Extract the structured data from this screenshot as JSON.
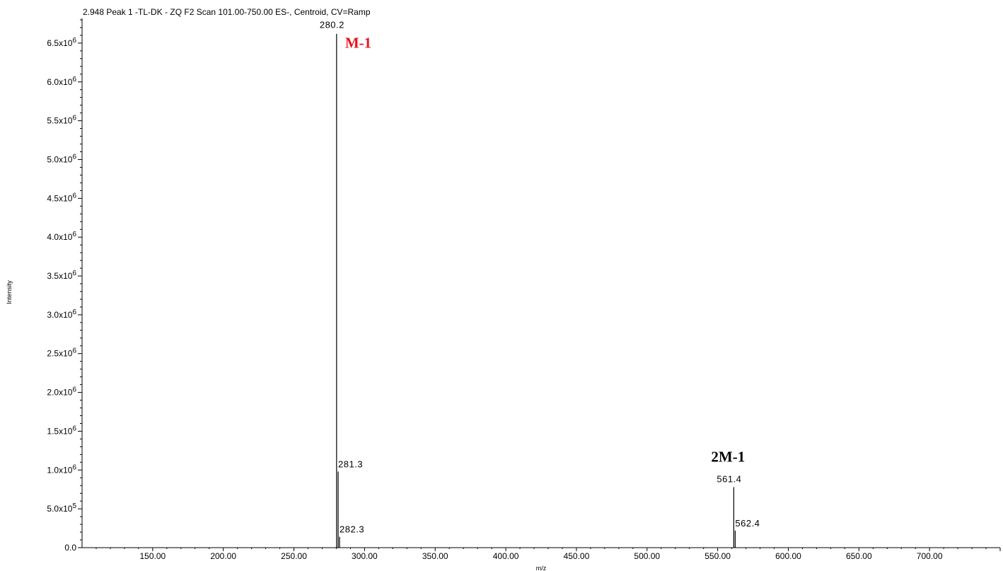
{
  "chart_data": {
    "type": "bar",
    "title": "2.948 Peak 1 -TL-DK - ZQ F2 Scan 101.00-750.00 ES-, Centroid, CV=Ramp",
    "xlabel": "m/z",
    "ylabel": "Intensity",
    "xlim": [
      100.0,
      750.0
    ],
    "ylim": [
      0,
      6800000
    ],
    "x_ticks": [
      150,
      200,
      250,
      300,
      350,
      400,
      450,
      500,
      550,
      600,
      650,
      700
    ],
    "x_tick_labels": [
      "150.00",
      "200.00",
      "250.00",
      "300.00",
      "350.00",
      "400.00",
      "450.00",
      "500.00",
      "550.00",
      "600.00",
      "650.00",
      "700.00"
    ],
    "y_ticks": [
      {
        "value": 0,
        "mantissa": "0.0",
        "exponent": ""
      },
      {
        "value": 500000,
        "mantissa": "5.0x10",
        "exponent": "5"
      },
      {
        "value": 1000000,
        "mantissa": "1.0x10",
        "exponent": "6"
      },
      {
        "value": 1500000,
        "mantissa": "1.5x10",
        "exponent": "6"
      },
      {
        "value": 2000000,
        "mantissa": "2.0x10",
        "exponent": "6"
      },
      {
        "value": 2500000,
        "mantissa": "2.5x10",
        "exponent": "6"
      },
      {
        "value": 3000000,
        "mantissa": "3.0x10",
        "exponent": "6"
      },
      {
        "value": 3500000,
        "mantissa": "3.5x10",
        "exponent": "6"
      },
      {
        "value": 4000000,
        "mantissa": "4.0x10",
        "exponent": "6"
      },
      {
        "value": 4500000,
        "mantissa": "4.5x10",
        "exponent": "6"
      },
      {
        "value": 5000000,
        "mantissa": "5.0x10",
        "exponent": "6"
      },
      {
        "value": 5500000,
        "mantissa": "5.5x10",
        "exponent": "6"
      },
      {
        "value": 6000000,
        "mantissa": "6.0x10",
        "exponent": "6"
      },
      {
        "value": 6500000,
        "mantissa": "6.5x10",
        "exponent": "6"
      }
    ],
    "peaks": [
      {
        "mz": 280.2,
        "intensity": 6620000,
        "label": "280.2"
      },
      {
        "mz": 281.3,
        "intensity": 980000,
        "label": "281.3"
      },
      {
        "mz": 282.3,
        "intensity": 140000,
        "label": "282.3"
      },
      {
        "mz": 561.4,
        "intensity": 780000,
        "label": "561.4"
      },
      {
        "mz": 562.4,
        "intensity": 220000,
        "label": "562.4"
      }
    ],
    "annotations": [
      {
        "text": "M-1",
        "mz": 280.2,
        "color": "#e8141b"
      },
      {
        "text": "2M-1",
        "mz": 561.4,
        "color": "#000000"
      }
    ],
    "grid": false
  }
}
